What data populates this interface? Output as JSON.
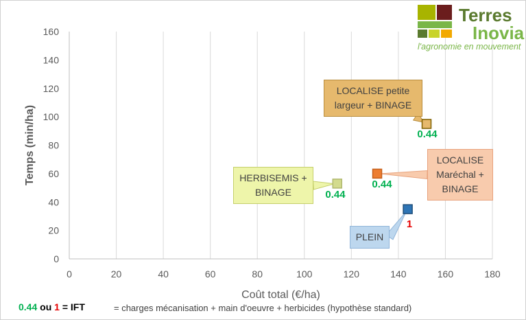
{
  "colors": {
    "axis_text": "#595959",
    "grid": "#d9d9d9",
    "green": "#00b050",
    "red": "#e60000",
    "logo_green": "#7ab648",
    "logo_dark": "#5a7a2e"
  },
  "chart_data": {
    "type": "scatter",
    "xlabel": "Coût total (€/ha)",
    "ylabel": "Temps (min/ha)",
    "xlim": [
      0,
      180
    ],
    "ylim": [
      0,
      160
    ],
    "xticks": [
      0,
      20,
      40,
      60,
      80,
      100,
      120,
      140,
      160,
      180
    ],
    "yticks": [
      0,
      20,
      40,
      60,
      80,
      100,
      120,
      140,
      160
    ],
    "grid": "vertical",
    "points": [
      {
        "lines": [
          "HERBISEMIS +",
          "BINAGE"
        ],
        "x": 114,
        "y": 53,
        "ift": "0.44",
        "ift_color": "green",
        "marker_color": "#d3db8e",
        "marker_edge": "#b0b870",
        "box_fill": "#eef5aa",
        "box_edge": "#c4cf6a"
      },
      {
        "lines": [
          "LOCALISE",
          "Maréchal +",
          "BINAGE"
        ],
        "x": 131,
        "y": 60,
        "ift": "0.44",
        "ift_color": "green",
        "marker_color": "#ed7d31",
        "marker_edge": "#c65f1a",
        "box_fill": "#f8cbad",
        "box_edge": "#e8a27c"
      },
      {
        "lines": [
          "LOCALISE petite",
          "largeur + BINAGE"
        ],
        "x": 152,
        "y": 95,
        "ift": "0.44",
        "ift_color": "green",
        "marker_color": "#e6b96d",
        "marker_edge": "#7f6000",
        "box_fill": "#e6b96d",
        "box_edge": "#b88c3c"
      },
      {
        "lines": [
          "PLEIN"
        ],
        "x": 144,
        "y": 35,
        "ift": "1",
        "ift_color": "red",
        "marker_color": "#2e75b6",
        "marker_edge": "#1f4e79",
        "box_fill": "#bdd7ee",
        "box_edge": "#8fb4d9"
      }
    ]
  },
  "logo": {
    "word1": "Terres",
    "word2": "Inovia",
    "tagline": "l'agronomie en mouvement"
  },
  "footer": {
    "legend_a": "0.44",
    "legend_or": "ou",
    "legend_b": "1",
    "legend_eq": "= IFT",
    "note": "= charges mécanisation + main d'oeuvre + herbicides (hypothèse standard)"
  }
}
